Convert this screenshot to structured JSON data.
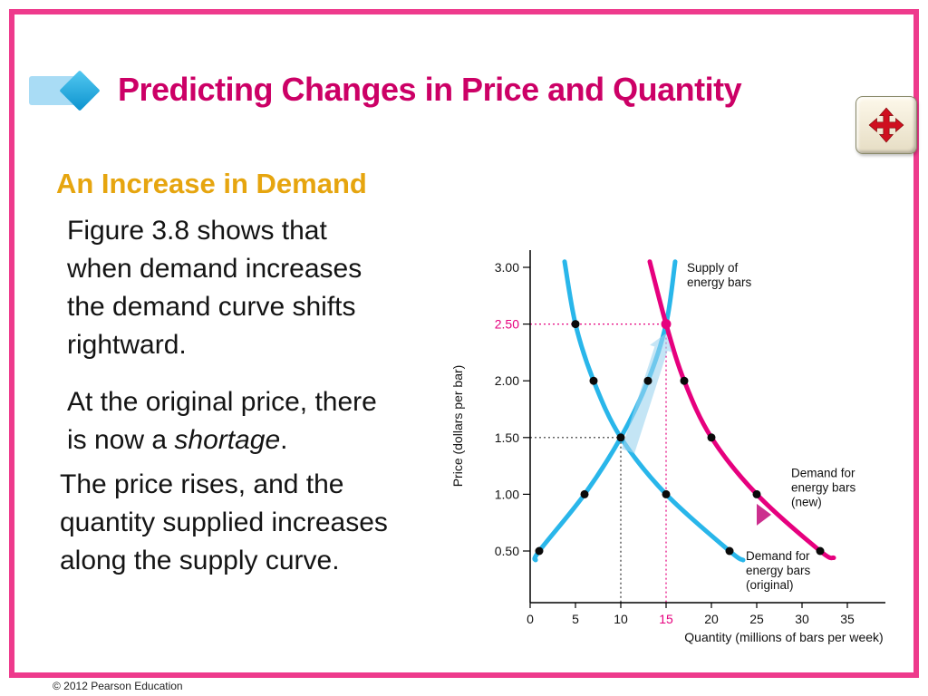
{
  "slide": {
    "title": "Predicting Changes in Price and Quantity",
    "heading": "An Increase in Demand",
    "paragraphs": {
      "p1": "Figure 3.8 shows that\nwhen demand increases\nthe demand curve shifts\nrightward.",
      "p2_pre": "At the original price, there\nis now a ",
      "p2_italic": "shortage",
      "p2_post": ".",
      "p3": "The price rises, and the\nquantity supplied increases\nalong the supply curve."
    },
    "footer": "© 2012 Pearson Education",
    "colors": {
      "frame_pink": "#ee3a8c",
      "title_magenta": "#cc0066",
      "heading_gold": "#e6a50f",
      "curve_cyan": "#29b6ea",
      "curve_magenta": "#e6007e",
      "nav_icon_red": "#cf1020"
    },
    "icons": {
      "title_bar": "title-bar-icon",
      "title_diamond": "diamond-icon",
      "navigation": "move-arrows-icon"
    }
  },
  "chart_data": {
    "type": "line",
    "title": "",
    "xlabel": "Quantity (millions of bars per week)",
    "ylabel": "Price (dollars per bar)",
    "xlim": [
      0,
      38
    ],
    "ylim": [
      0.25,
      3.2
    ],
    "xticks": [
      0,
      5,
      10,
      15,
      20,
      25,
      30,
      35
    ],
    "yticks": [
      0.5,
      1.0,
      1.5,
      2.0,
      2.5,
      3.0
    ],
    "highlight": {
      "quantity": 15,
      "price": 2.5,
      "color": "#e6007e"
    },
    "series": [
      {
        "name": "Supply of energy bars",
        "color": "#29b6ea",
        "points": [
          [
            0.6,
            0.42
          ],
          [
            1,
            0.5
          ],
          [
            6,
            1.0
          ],
          [
            10,
            1.5
          ],
          [
            13,
            2.0
          ],
          [
            15,
            2.5
          ],
          [
            16,
            3.05
          ]
        ]
      },
      {
        "name": "Demand for energy bars (original)",
        "color": "#29b6ea",
        "points": [
          [
            3.8,
            3.05
          ],
          [
            5,
            2.5
          ],
          [
            7,
            2.0
          ],
          [
            10,
            1.5
          ],
          [
            15,
            1.0
          ],
          [
            22,
            0.5
          ],
          [
            23.5,
            0.42
          ]
        ]
      },
      {
        "name": "Demand for energy bars (new)",
        "color": "#e6007e",
        "points": [
          [
            13.2,
            3.05
          ],
          [
            15,
            2.5
          ],
          [
            17,
            2.0
          ],
          [
            20,
            1.5
          ],
          [
            25,
            1.0
          ],
          [
            32,
            0.5
          ],
          [
            33.5,
            0.44
          ]
        ]
      }
    ],
    "dots_black": [
      [
        1,
        0.5
      ],
      [
        6,
        1.0
      ],
      [
        13,
        2.0
      ],
      [
        5,
        2.5
      ],
      [
        7,
        2.0
      ],
      [
        10,
        1.5
      ],
      [
        15,
        1.0
      ],
      [
        22,
        0.5
      ],
      [
        17,
        2.0
      ],
      [
        20,
        1.5
      ],
      [
        25,
        1.0
      ],
      [
        32,
        0.5
      ]
    ],
    "dots_pink": [
      [
        15,
        2.5
      ]
    ],
    "equilibria": {
      "original": {
        "quantity": 10,
        "price": 1.5
      },
      "new": {
        "quantity": 15,
        "price": 2.5
      }
    },
    "guides": [
      {
        "color": "#333333",
        "price": 1.5,
        "quantity": 10
      },
      {
        "color": "#e6007e",
        "price": 2.5,
        "quantity": 15
      }
    ],
    "annotations": [
      {
        "lines": [
          "Supply of",
          "energy bars"
        ],
        "q": 17.3,
        "p": 2.96
      },
      {
        "lines": [
          "Demand for",
          "energy bars",
          "(new)"
        ],
        "q": 28.8,
        "p": 1.15
      },
      {
        "lines": [
          "Demand for",
          "energy bars",
          "(original)"
        ],
        "q": 23.8,
        "p": 0.42
      }
    ],
    "shift_arrow": {
      "from": [
        17.2,
        0.82
      ],
      "to": [
        26.6,
        0.82
      ],
      "from_color": "#7fc9ef",
      "to_color": "#cc2f8e"
    },
    "movement_arrow": {
      "from": [
        10.8,
        1.38
      ],
      "to": [
        15.0,
        2.42
      ],
      "color": "#9ed4f0"
    }
  }
}
